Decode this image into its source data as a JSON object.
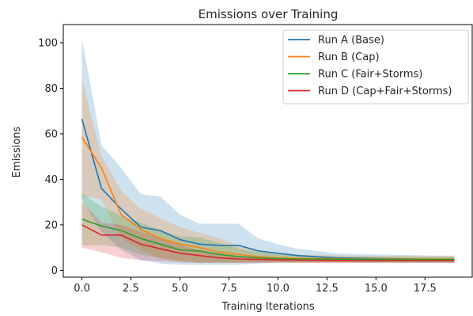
{
  "chart_data": {
    "type": "line",
    "title": "Emissions over Training",
    "xlabel": "Training Iterations",
    "ylabel": "Emissions",
    "xlim": [
      -0.95,
      19.95
    ],
    "ylim": [
      -3,
      108
    ],
    "xticks": [
      0.0,
      2.5,
      5.0,
      7.5,
      10.0,
      12.5,
      15.0,
      17.5
    ],
    "xtick_labels": [
      "0.0",
      "2.5",
      "5.0",
      "7.5",
      "10.0",
      "12.5",
      "15.0",
      "17.5"
    ],
    "yticks": [
      0,
      20,
      40,
      60,
      80,
      100
    ],
    "ytick_labels": [
      "0",
      "20",
      "40",
      "60",
      "80",
      "100"
    ],
    "grid": false,
    "legend_position": "top-right",
    "x": [
      0,
      1,
      2,
      3,
      4,
      5,
      6,
      7,
      8,
      9,
      10,
      11,
      12,
      13,
      14,
      15,
      16,
      17,
      18,
      19
    ],
    "series": [
      {
        "name": "Run A (Base)",
        "color": "#1f77b4",
        "values": [
          66.5,
          36,
          27,
          19,
          17.5,
          13.5,
          11.5,
          11,
          11,
          8.5,
          7.5,
          6.5,
          6,
          5.5,
          5.3,
          5.2,
          5.1,
          5,
          4.9,
          4.8
        ],
        "upper": [
          102,
          55,
          45,
          33.5,
          32.5,
          24.5,
          20.5,
          20.5,
          20.5,
          14,
          11.5,
          9.5,
          8.5,
          7.5,
          7.2,
          7,
          6.8,
          6.7,
          6.5,
          6.5
        ],
        "lower": [
          31,
          17,
          9,
          4.5,
          3,
          2.5,
          2.5,
          2.5,
          2.5,
          3,
          3.5,
          3.5,
          3.5,
          3.5,
          3.4,
          3.4,
          3.4,
          3.3,
          3.3,
          3.3
        ]
      },
      {
        "name": "Run B (Cap)",
        "color": "#ff7f0e",
        "values": [
          58.5,
          45,
          24.5,
          18,
          14,
          11.5,
          10,
          8,
          7,
          6,
          5.5,
          5.3,
          5.2,
          5.1,
          5,
          5,
          5,
          5,
          5,
          5
        ],
        "upper": [
          84,
          50,
          35,
          27,
          23,
          19,
          16.5,
          14,
          11,
          9,
          7.5,
          7,
          6.8,
          6.6,
          6.5,
          6.4,
          6.4,
          6.3,
          6.3,
          6.3
        ],
        "lower": [
          33,
          31,
          14,
          9,
          5,
          4,
          3.5,
          3.5,
          3.5,
          3.5,
          3.5,
          3.5,
          3.5,
          3.5,
          3.5,
          3.5,
          3.5,
          3.5,
          3.5,
          3.5
        ]
      },
      {
        "name": "Run C (Fair+Storms)",
        "color": "#2ca02c",
        "values": [
          22.5,
          19.5,
          17.5,
          14,
          11.5,
          9,
          8.5,
          7,
          6,
          5.5,
          5.2,
          5,
          5,
          4.9,
          4.9,
          4.8,
          4.8,
          4.8,
          4.8,
          4.8
        ],
        "upper": [
          34,
          28,
          24,
          21,
          17.5,
          15,
          14.5,
          12,
          9.5,
          8,
          7,
          6.5,
          6.2,
          6,
          6,
          5.9,
          5.9,
          5.9,
          5.9,
          5.9
        ],
        "lower": [
          11,
          11,
          10,
          7,
          5.5,
          4,
          3.5,
          3.5,
          3.5,
          3.5,
          3.5,
          3.5,
          3.5,
          3.5,
          3.5,
          3.5,
          3.5,
          3.5,
          3.5,
          3.5
        ]
      },
      {
        "name": "Run D (Cap+Fair+Storms)",
        "color": "#d62728",
        "values": [
          20,
          15.5,
          15.5,
          11.5,
          9.5,
          7.5,
          6.5,
          5.5,
          5,
          4.8,
          4.6,
          4.5,
          4.4,
          4.4,
          4.3,
          4.3,
          4.3,
          4.3,
          4.3,
          4.3
        ],
        "upper": [
          30,
          21,
          20,
          17,
          14,
          11,
          9,
          7.5,
          6.5,
          6,
          5.6,
          5.4,
          5.3,
          5.2,
          5.1,
          5.1,
          5.1,
          5.1,
          5.1,
          5.1
        ],
        "lower": [
          10,
          8,
          5.5,
          4.5,
          4,
          3.5,
          3.2,
          3.2,
          3.2,
          3.2,
          3.2,
          3.2,
          3.2,
          3.2,
          3.2,
          3.2,
          3.2,
          3.2,
          3.2,
          3.2
        ]
      }
    ]
  }
}
